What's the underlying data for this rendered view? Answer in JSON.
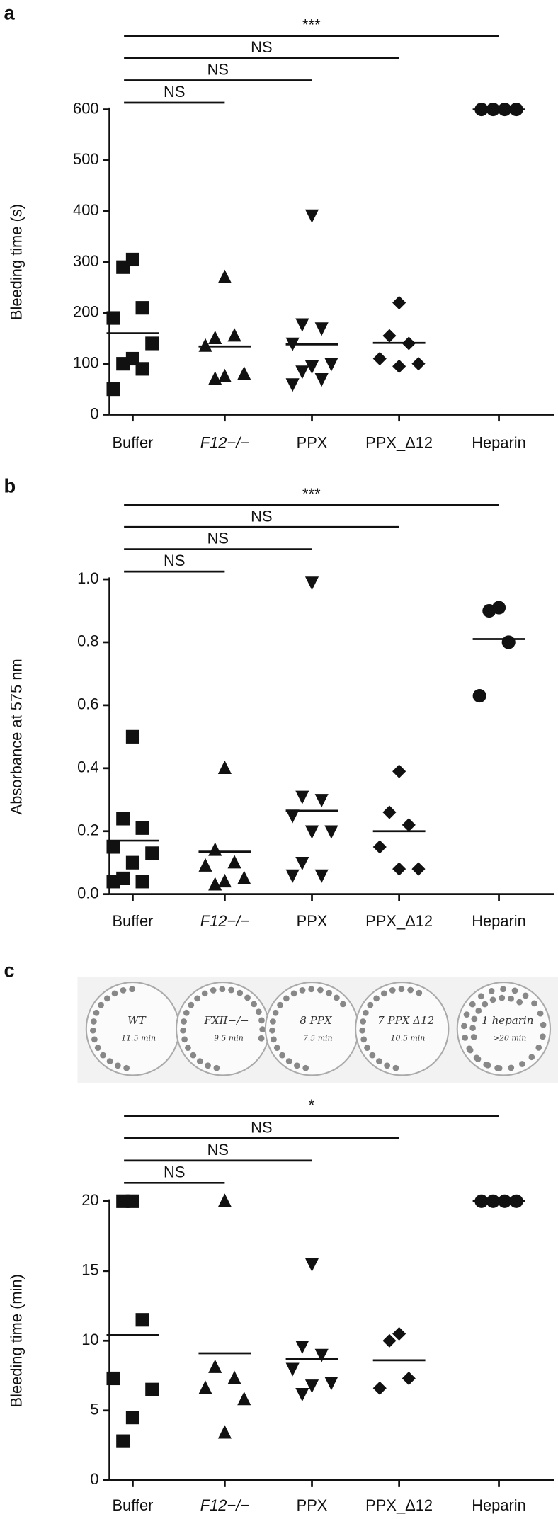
{
  "chart_data": [
    {
      "type": "strip",
      "panel": "a",
      "ylabel": "Bleeding time (s)",
      "categories": [
        "Buffer",
        "F12−/−",
        "PPX",
        "PPX_Δ12",
        "Heparin"
      ],
      "markers": [
        "square",
        "triangle-up",
        "triangle-down",
        "diamond",
        "circle"
      ],
      "values": [
        [
          305,
          290,
          210,
          190,
          140,
          110,
          100,
          90,
          50
        ],
        [
          270,
          150,
          155,
          135,
          80,
          75,
          70
        ],
        [
          392,
          178,
          170,
          140,
          100,
          95,
          85,
          70,
          60
        ],
        [
          220,
          155,
          140,
          110,
          100,
          95
        ],
        [
          600,
          600,
          600,
          600
        ]
      ],
      "means": [
        160,
        134,
        138,
        141,
        600
      ],
      "ylim": [
        0,
        600
      ],
      "yticks": [
        0,
        100,
        200,
        300,
        400,
        500,
        600
      ],
      "comparisons": [
        {
          "from": "Buffer",
          "to": "Heparin",
          "label": "***"
        },
        {
          "from": "Buffer",
          "to": "PPX_Δ12",
          "label": "NS"
        },
        {
          "from": "Buffer",
          "to": "PPX",
          "label": "NS"
        },
        {
          "from": "Buffer",
          "to": "F12−/−",
          "label": "NS"
        }
      ]
    },
    {
      "type": "strip",
      "panel": "b",
      "ylabel": "Absorbance at 575 nm",
      "categories": [
        "Buffer",
        "F12−/−",
        "PPX",
        "PPX_Δ12",
        "Heparin"
      ],
      "markers": [
        "square",
        "triangle-up",
        "triangle-down",
        "diamond",
        "circle"
      ],
      "values": [
        [
          0.5,
          0.24,
          0.21,
          0.15,
          0.13,
          0.1,
          0.05,
          0.04,
          0.04
        ],
        [
          0.4,
          0.14,
          0.1,
          0.09,
          0.05,
          0.04,
          0.03
        ],
        [
          0.99,
          0.31,
          0.3,
          0.25,
          0.2,
          0.2,
          0.1,
          0.06,
          0.06
        ],
        [
          0.39,
          0.26,
          0.22,
          0.15,
          0.08,
          0.08
        ],
        [
          0.91,
          0.9,
          0.8,
          0.63
        ]
      ],
      "means": [
        0.17,
        0.135,
        0.265,
        0.2,
        0.81
      ],
      "ylim": [
        0,
        1
      ],
      "yticks": [
        {
          "value": 0,
          "label": "0.0"
        },
        0.2,
        0.4,
        0.6,
        0.8,
        {
          "value": 1,
          "label": "1.0"
        }
      ],
      "comparisons": [
        {
          "from": "Buffer",
          "to": "Heparin",
          "label": "***"
        },
        {
          "from": "Buffer",
          "to": "PPX_Δ12",
          "label": "NS"
        },
        {
          "from": "Buffer",
          "to": "PPX",
          "label": "NS"
        },
        {
          "from": "Buffer",
          "to": "F12−/−",
          "label": "NS"
        }
      ]
    },
    {
      "type": "strip",
      "panel": "c",
      "ylabel": "Bleeding time (min)",
      "categories": [
        "Buffer",
        "F12−/−",
        "PPX",
        "PPX_Δ12",
        "Heparin"
      ],
      "markers": [
        "square",
        "triangle-up",
        "triangle-down",
        "diamond",
        "circle"
      ],
      "values": [
        [
          20,
          20,
          11.5,
          7.3,
          6.5,
          4.5,
          2.8
        ],
        [
          20,
          8.1,
          7.3,
          6.6,
          5.8,
          3.4
        ],
        [
          15.5,
          9.6,
          9,
          8,
          7,
          6.8,
          6.2
        ],
        [
          10.5,
          10,
          7.3,
          6.6
        ],
        [
          20,
          20,
          20,
          20
        ]
      ],
      "means": [
        10.4,
        9.1,
        8.7,
        8.6,
        20
      ],
      "ylim": [
        0,
        20
      ],
      "yticks": [
        0,
        5,
        10,
        15,
        20
      ],
      "comparisons": [
        {
          "from": "Buffer",
          "to": "Heparin",
          "label": "*"
        },
        {
          "from": "Buffer",
          "to": "PPX_Δ12",
          "label": "NS"
        },
        {
          "from": "Buffer",
          "to": "PPX",
          "label": "NS"
        },
        {
          "from": "Buffer",
          "to": "F12−/−",
          "label": "NS"
        }
      ]
    }
  ],
  "plates": [
    {
      "label": "WT",
      "time": "11.5 min"
    },
    {
      "label": "FXII−/−",
      "time": "9.5 min"
    },
    {
      "label": "8 PPX",
      "time": "7.5 min"
    },
    {
      "label": "7 PPX Δ12",
      "time": "10.5 min"
    },
    {
      "label": "1 heparin",
      "time": ">20 min"
    }
  ]
}
